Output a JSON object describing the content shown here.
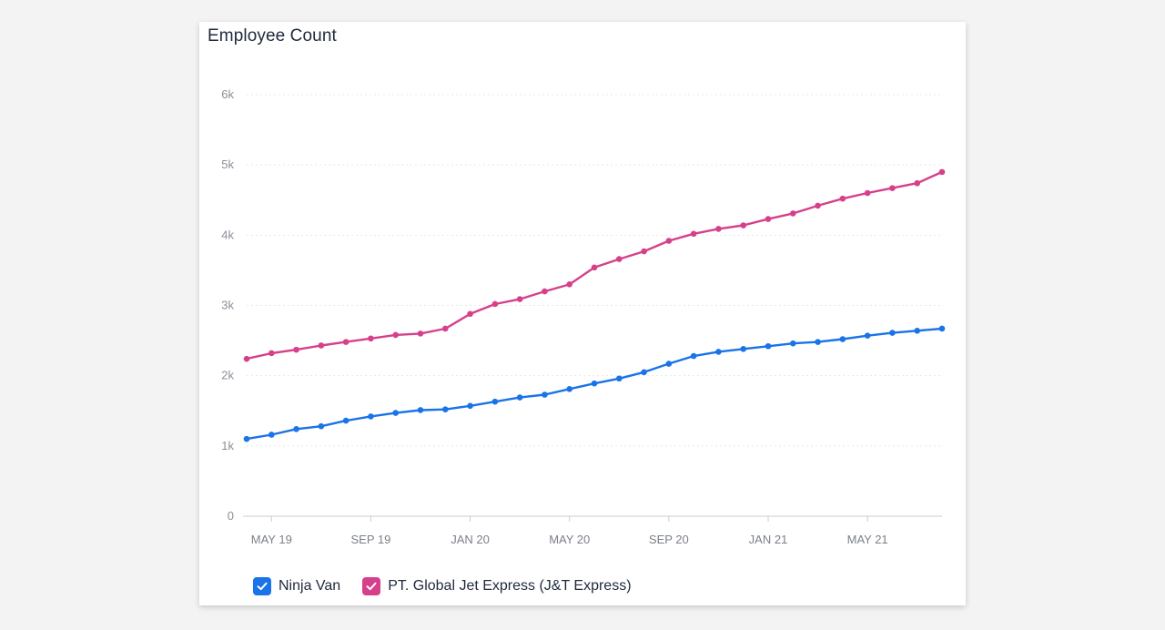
{
  "chart_data": {
    "type": "line",
    "title": "Employee Count",
    "x": [
      "APR 19",
      "MAY 19",
      "JUN 19",
      "JUL 19",
      "AUG 19",
      "SEP 19",
      "OCT 19",
      "NOV 19",
      "DEC 19",
      "JAN 20",
      "FEB 20",
      "MAR 20",
      "APR 20",
      "MAY 20",
      "JUN 20",
      "JUL 20",
      "AUG 20",
      "SEP 20",
      "OCT 20",
      "NOV 20",
      "DEC 20",
      "JAN 21",
      "FEB 21",
      "MAR 21",
      "APR 21",
      "MAY 21",
      "JUN 21",
      "JUL 21",
      "AUG 21"
    ],
    "x_tick_labels": [
      "MAY 19",
      "SEP 19",
      "JAN 20",
      "MAY 20",
      "SEP 20",
      "JAN 21",
      "MAY 21"
    ],
    "x_tick_positions": [
      "MAY 19",
      "SEP 19",
      "JAN 20",
      "MAY 20",
      "SEP 20",
      "JAN 21",
      "MAY 21"
    ],
    "y_tick_labels": [
      "0",
      "1k",
      "2k",
      "3k",
      "4k",
      "5k",
      "6k"
    ],
    "y_tick_values": [
      0,
      1000,
      2000,
      3000,
      4000,
      5000,
      6000
    ],
    "ylim": [
      0,
      6000
    ],
    "grid": true,
    "legend_position": "bottom-left",
    "series": [
      {
        "name": "Ninja Van",
        "color": "#1a73e8",
        "values": [
          1100,
          1160,
          1240,
          1280,
          1360,
          1420,
          1470,
          1510,
          1520,
          1570,
          1630,
          1690,
          1730,
          1810,
          1890,
          1960,
          2050,
          2170,
          2280,
          2340,
          2380,
          2420,
          2460,
          2480,
          2520,
          2570,
          2610,
          2640,
          2670
        ]
      },
      {
        "name": "PT. Global Jet Express (J&T Express)",
        "color": "#d6408b",
        "values": [
          2240,
          2320,
          2370,
          2430,
          2480,
          2530,
          2580,
          2600,
          2670,
          2880,
          3020,
          3090,
          3200,
          3300,
          3540,
          3660,
          3770,
          3920,
          4020,
          4090,
          4140,
          4230,
          4310,
          4420,
          4520,
          4600,
          4670,
          4740,
          4900
        ]
      }
    ]
  }
}
